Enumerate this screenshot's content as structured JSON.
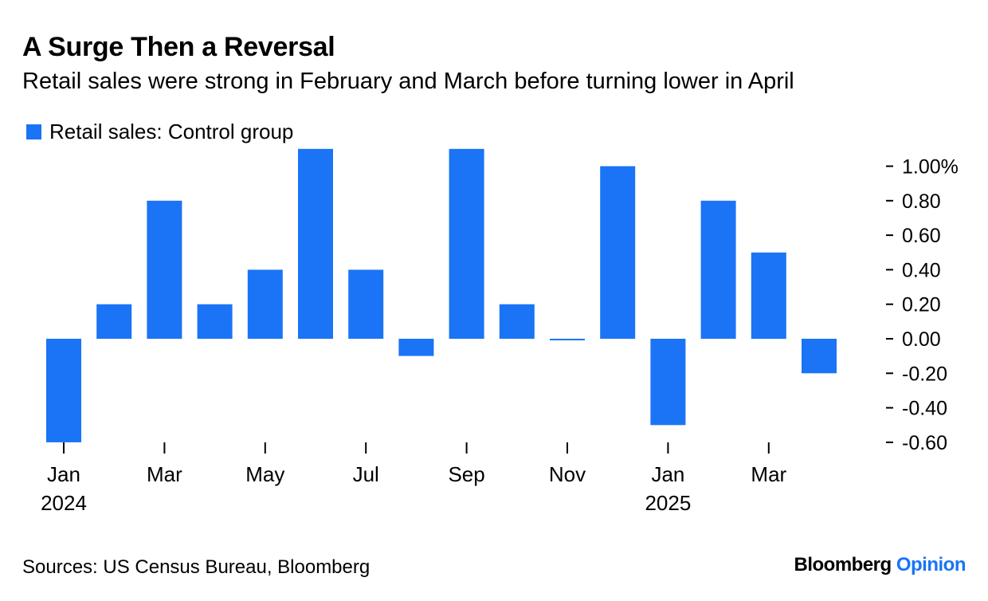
{
  "header": {
    "title": "A Surge Then a Reversal",
    "subtitle": "Retail sales were strong in February and March before turning lower in April"
  },
  "legend": {
    "label": "Retail sales: Control group"
  },
  "footer": {
    "source": "Sources: US Census Bureau, Bloomberg",
    "brand_main": "Bloomberg",
    "brand_accent": "Opinion"
  },
  "colors": {
    "bar": "#1a74f5",
    "brand_accent": "#1a74f5"
  },
  "chart_data": {
    "type": "bar",
    "title": "A Surge Then a Reversal",
    "subtitle": "Retail sales were strong in February and March before turning lower in April",
    "categories": [
      "Jan 2024",
      "Feb 2024",
      "Mar 2024",
      "Apr 2024",
      "May 2024",
      "Jun 2024",
      "Jul 2024",
      "Aug 2024",
      "Sep 2024",
      "Oct 2024",
      "Nov 2024",
      "Dec 2024",
      "Jan 2025",
      "Feb 2025",
      "Mar 2025",
      "Apr 2025"
    ],
    "series": [
      {
        "name": "Retail sales: Control group",
        "values": [
          -0.6,
          0.2,
          0.8,
          0.2,
          0.4,
          1.1,
          0.4,
          -0.1,
          1.1,
          0.2,
          0.0,
          1.0,
          -0.5,
          0.8,
          0.5,
          -0.2
        ]
      }
    ],
    "x_tick_labels": [
      {
        "index": 0,
        "label": "Jan",
        "sublabel": "2024"
      },
      {
        "index": 2,
        "label": "Mar",
        "sublabel": ""
      },
      {
        "index": 4,
        "label": "May",
        "sublabel": ""
      },
      {
        "index": 6,
        "label": "Jul",
        "sublabel": ""
      },
      {
        "index": 8,
        "label": "Sep",
        "sublabel": ""
      },
      {
        "index": 10,
        "label": "Nov",
        "sublabel": ""
      },
      {
        "index": 12,
        "label": "Jan",
        "sublabel": "2025"
      },
      {
        "index": 14,
        "label": "Mar",
        "sublabel": ""
      }
    ],
    "y_ticks": [
      {
        "value": 1.0,
        "label": "1.00%"
      },
      {
        "value": 0.8,
        "label": "0.80"
      },
      {
        "value": 0.6,
        "label": "0.60"
      },
      {
        "value": 0.4,
        "label": "0.40"
      },
      {
        "value": 0.2,
        "label": "0.20"
      },
      {
        "value": 0.0,
        "label": "0.00"
      },
      {
        "value": -0.2,
        "label": "-0.20"
      },
      {
        "value": -0.4,
        "label": "-0.40"
      },
      {
        "value": -0.6,
        "label": "-0.60"
      }
    ],
    "ylim": [
      -0.6,
      1.1
    ],
    "y_axis_position": "right",
    "grid": false,
    "legend_position": "top-left"
  }
}
